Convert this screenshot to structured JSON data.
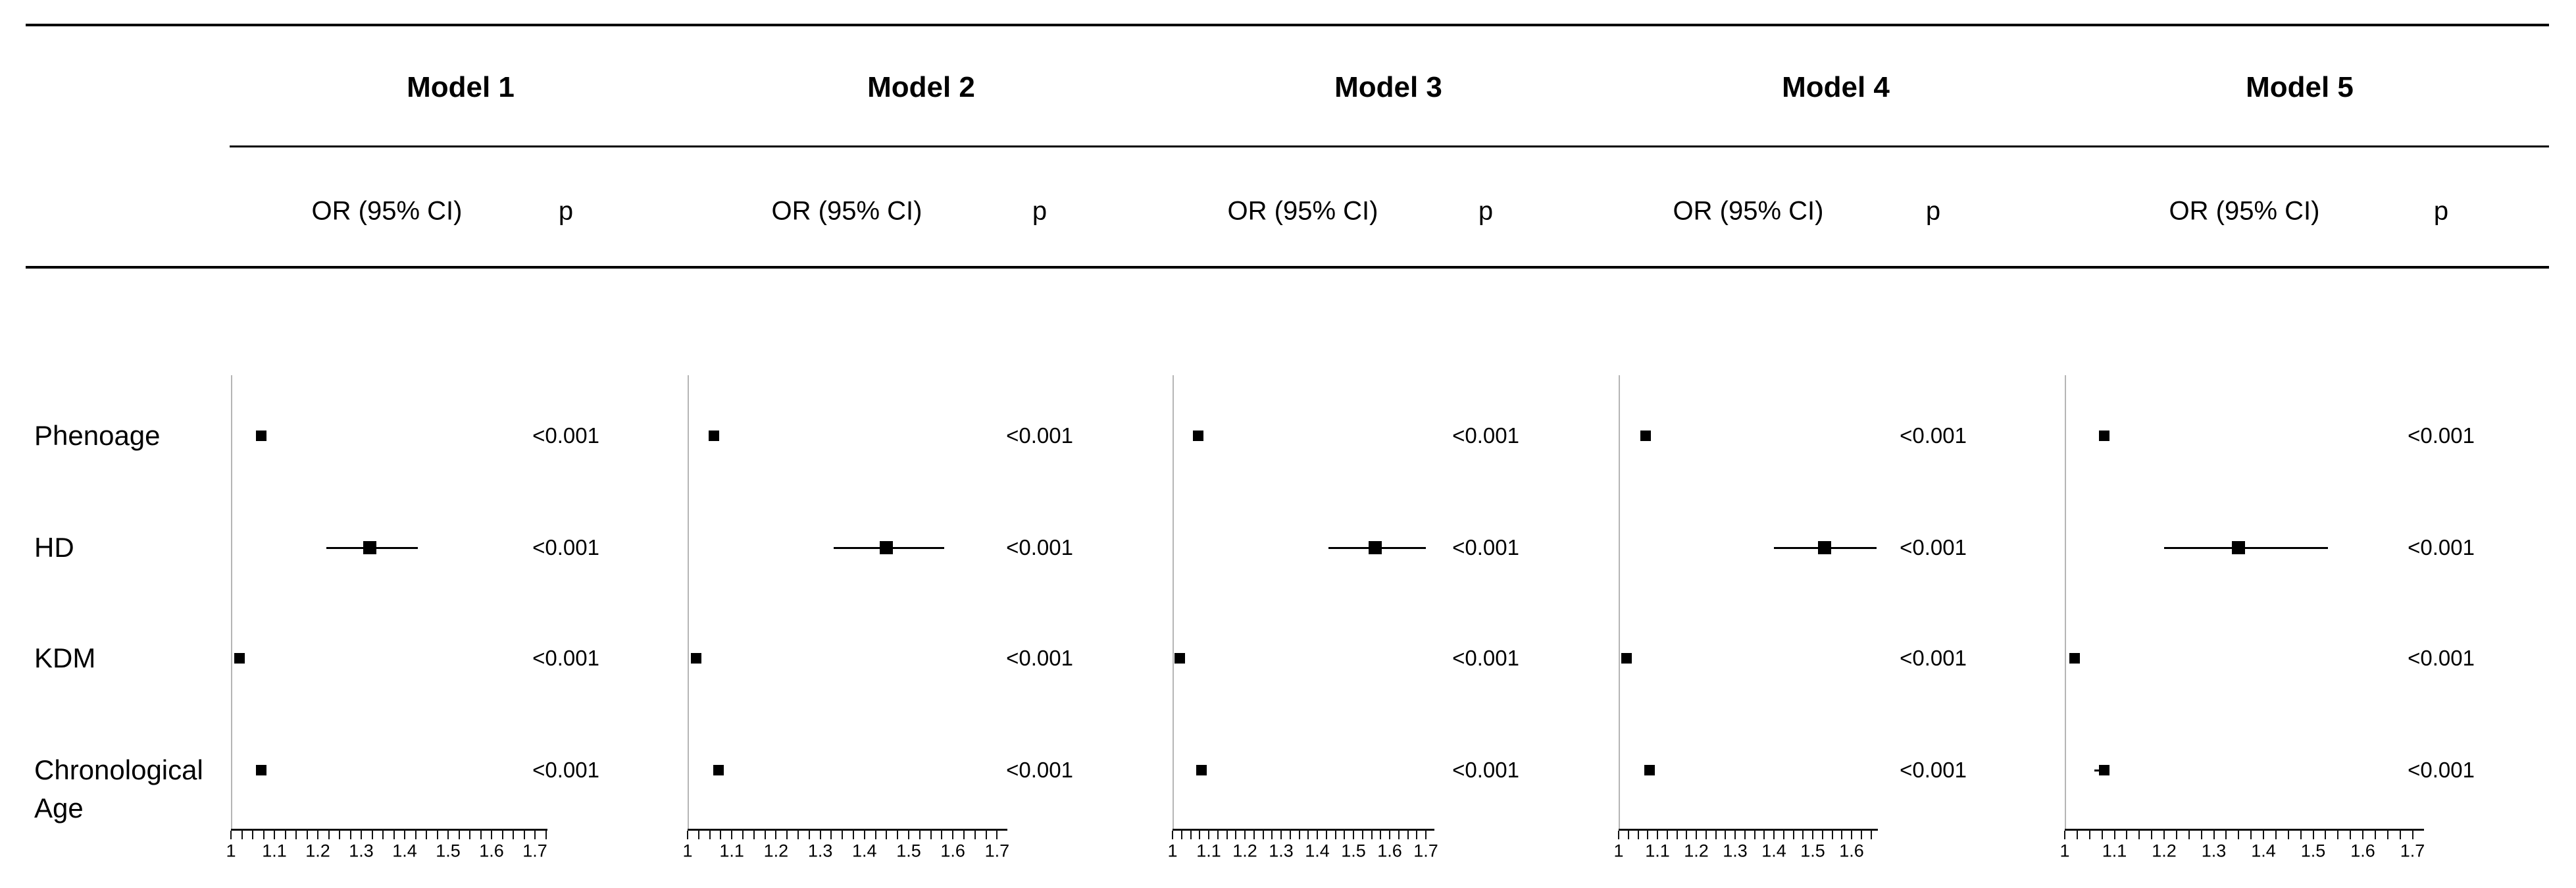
{
  "figure": {
    "kind": "forest-plot-table",
    "background": "#ffffff"
  },
  "colors": {
    "text": "#000000",
    "rule": "#000000",
    "axis_line": "#111111",
    "reference_line": "#b5b5b5",
    "marker": "#000000"
  },
  "table": {
    "col_or_header": "OR (95% CI)",
    "col_p_header": "p",
    "row_labels": [
      "Phenoage",
      "HD",
      "KDM",
      "Chronological Age"
    ]
  },
  "chart_data": {
    "type": "scatter",
    "subtype": "forest plot, odds ratios with 95% confidence intervals",
    "xlabel": "OR",
    "grid": false,
    "panels": [
      {
        "title": "Model 1",
        "axis": {
          "min": 1,
          "max": 1.725,
          "label_step": 0.1,
          "minor_step": 0.025,
          "tick_labels": [
            "1",
            "1.1",
            "1.2",
            "1.3",
            "1.4",
            "1.5",
            "1.6",
            "1.7"
          ]
        },
        "rows": [
          {
            "label": "Phenoage",
            "or": 1.07,
            "ci_low": 1.06,
            "ci_high": 1.08,
            "p": "<0.001"
          },
          {
            "label": "HD",
            "or": 1.32,
            "ci_low": 1.22,
            "ci_high": 1.43,
            "p": "<0.001"
          },
          {
            "label": "KDM",
            "or": 1.02,
            "ci_low": 1.01,
            "ci_high": 1.03,
            "p": "<0.001"
          },
          {
            "label": "Chronological Age",
            "or": 1.07,
            "ci_low": 1.06,
            "ci_high": 1.08,
            "p": "<0.001"
          }
        ]
      },
      {
        "title": "Model 2",
        "axis": {
          "min": 1,
          "max": 1.72,
          "label_step": 0.1,
          "minor_step": 0.025,
          "tick_labels": [
            "1",
            "1.1",
            "1.2",
            "1.3",
            "1.4",
            "1.5",
            "1.6",
            "1.7"
          ]
        },
        "rows": [
          {
            "label": "Phenoage",
            "or": 1.06,
            "ci_low": 1.05,
            "ci_high": 1.07,
            "p": "<0.001"
          },
          {
            "label": "HD",
            "or": 1.45,
            "ci_low": 1.33,
            "ci_high": 1.58,
            "p": "<0.001"
          },
          {
            "label": "KDM",
            "or": 1.02,
            "ci_low": 1.01,
            "ci_high": 1.03,
            "p": "<0.001"
          },
          {
            "label": "Chronological Age",
            "or": 1.07,
            "ci_low": 1.06,
            "ci_high": 1.08,
            "p": "<0.001"
          }
        ]
      },
      {
        "title": "Model 3",
        "axis": {
          "min": 1,
          "max": 1.72,
          "label_step": 0.1,
          "minor_step": 0.025,
          "tick_labels": [
            "1",
            "1.1",
            "1.2",
            "1.3",
            "1.4",
            "1.5",
            "1.6",
            "1.7"
          ]
        },
        "rows": [
          {
            "label": "Phenoage",
            "or": 1.07,
            "ci_low": 1.06,
            "ci_high": 1.08,
            "p": "<0.001"
          },
          {
            "label": "HD",
            "or": 1.56,
            "ci_low": 1.43,
            "ci_high": 1.7,
            "p": "<0.001"
          },
          {
            "label": "KDM",
            "or": 1.02,
            "ci_low": 1.01,
            "ci_high": 1.03,
            "p": "<0.001"
          },
          {
            "label": "Chronological Age",
            "or": 1.08,
            "ci_low": 1.07,
            "ci_high": 1.09,
            "p": "<0.001"
          }
        ]
      },
      {
        "title": "Model 4",
        "axis": {
          "min": 1,
          "max": 1.665,
          "label_step": 0.1,
          "minor_step": 0.025,
          "tick_labels": [
            "1",
            "1.1",
            "1.2",
            "1.3",
            "1.4",
            "1.5",
            "1.6"
          ]
        },
        "rows": [
          {
            "label": "Phenoage",
            "or": 1.07,
            "ci_low": 1.06,
            "ci_high": 1.08,
            "p": "<0.001"
          },
          {
            "label": "HD",
            "or": 1.53,
            "ci_low": 1.4,
            "ci_high": 1.665,
            "p": "<0.001"
          },
          {
            "label": "KDM",
            "or": 1.02,
            "ci_low": 1.01,
            "ci_high": 1.03,
            "p": "<0.001"
          },
          {
            "label": "Chronological Age",
            "or": 1.08,
            "ci_low": 1.07,
            "ci_high": 1.09,
            "p": "<0.001"
          }
        ]
      },
      {
        "title": "Model 5",
        "axis": {
          "min": 1,
          "max": 1.72,
          "label_step": 0.1,
          "minor_step": 0.025,
          "tick_labels": [
            "1",
            "1.1",
            "1.2",
            "1.3",
            "1.4",
            "1.5",
            "1.6",
            "1.7"
          ]
        },
        "rows": [
          {
            "label": "Phenoage",
            "or": 1.08,
            "ci_low": 1.07,
            "ci_high": 1.09,
            "p": "<0.001"
          },
          {
            "label": "HD",
            "or": 1.35,
            "ci_low": 1.2,
            "ci_high": 1.53,
            "p": "<0.001"
          },
          {
            "label": "KDM",
            "or": 1.02,
            "ci_low": 1.01,
            "ci_high": 1.03,
            "p": "<0.001"
          },
          {
            "label": "Chronological Age",
            "or": 1.08,
            "ci_low": 1.06,
            "ci_high": 1.09,
            "p": "<0.001"
          }
        ]
      }
    ]
  }
}
